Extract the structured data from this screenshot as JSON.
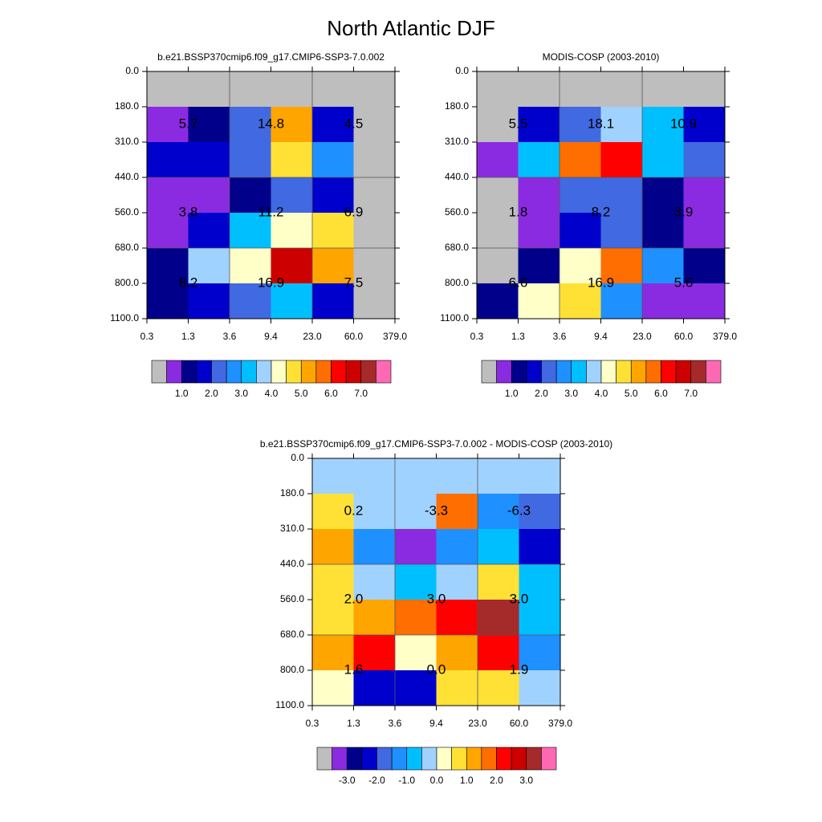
{
  "title": "North Atlantic DJF",
  "chart_data": [
    {
      "type": "heatmap",
      "title": "b.e21.BSSP370cmip6.f09_g17.CMIP6-SSP3-7.0.002",
      "x_edges": [
        "0.3",
        "1.3",
        "3.6",
        "9.4",
        "23.0",
        "60.0",
        "379.0"
      ],
      "y_edges": [
        "0.0",
        "180.0",
        "310.0",
        "440.0",
        "560.0",
        "680.0",
        "800.0",
        "1100.0"
      ],
      "values": [
        [
          null,
          null,
          null,
          null,
          null,
          null
        ],
        [
          0.75,
          1.25,
          2.25,
          5.25,
          1.75,
          null
        ],
        [
          1.75,
          1.75,
          2.25,
          4.75,
          2.75,
          null
        ],
        [
          0.75,
          0.75,
          1.25,
          2.25,
          1.75,
          null
        ],
        [
          0.75,
          1.75,
          3.25,
          4.25,
          4.75,
          null
        ],
        [
          1.25,
          3.75,
          4.25,
          6.75,
          5.25,
          null
        ],
        [
          1.25,
          1.75,
          2.25,
          3.25,
          1.75,
          null
        ]
      ],
      "block_labels": [
        [
          "5.7",
          "14.8",
          "4.5"
        ],
        [
          "3.8",
          "11.2",
          "6.9"
        ],
        [
          "8.2",
          "16.9",
          "7.5"
        ]
      ],
      "colorbar": {
        "lim": [
          0,
          8
        ],
        "colors": [
          "#bebebe",
          "#8a2be2",
          "#00008b",
          "#0000cd",
          "#4169e1",
          "#1e90ff",
          "#00bfff",
          "#a0d2ff",
          "#ffffc8",
          "#ffe135",
          "#ffa500",
          "#ff6e00",
          "#ff0000",
          "#cd0000",
          "#a52a2a",
          "#ff69b4"
        ],
        "ticks": [
          {
            "value": 1,
            "label": "1.0"
          },
          {
            "value": 2,
            "label": "2.0"
          },
          {
            "value": 3,
            "label": "3.0"
          },
          {
            "value": 4,
            "label": "4.0"
          },
          {
            "value": 5,
            "label": "5.0"
          },
          {
            "value": 6,
            "label": "6.0"
          },
          {
            "value": 7,
            "label": "7.0"
          }
        ]
      }
    },
    {
      "type": "heatmap",
      "title": "MODIS-COSP (2003-2010)",
      "x_edges": [
        "0.3",
        "1.3",
        "3.6",
        "9.4",
        "23.0",
        "60.0",
        "379.0"
      ],
      "y_edges": [
        "0.0",
        "180.0",
        "310.0",
        "440.0",
        "560.0",
        "680.0",
        "800.0",
        "1100.0"
      ],
      "values": [
        [
          null,
          null,
          null,
          null,
          null,
          null
        ],
        [
          null,
          1.75,
          2.25,
          3.75,
          3.25,
          1.75
        ],
        [
          0.75,
          3.25,
          5.75,
          6.25,
          3.25,
          2.25
        ],
        [
          null,
          0.75,
          2.25,
          2.25,
          1.25,
          0.75
        ],
        [
          null,
          0.75,
          1.75,
          2.25,
          1.25,
          0.75
        ],
        [
          null,
          1.25,
          4.25,
          5.75,
          2.75,
          1.25
        ],
        [
          1.25,
          4.25,
          4.75,
          2.75,
          0.75,
          0.75
        ]
      ],
      "block_labels": [
        [
          "5.5",
          "18.1",
          "10.9"
        ],
        [
          "1.8",
          "8.2",
          "3.9"
        ],
        [
          "6.6",
          "16.9",
          "5.6"
        ]
      ],
      "colorbar": {
        "lim": [
          0,
          8
        ],
        "colors": [
          "#bebebe",
          "#8a2be2",
          "#00008b",
          "#0000cd",
          "#4169e1",
          "#1e90ff",
          "#00bfff",
          "#a0d2ff",
          "#ffffc8",
          "#ffe135",
          "#ffa500",
          "#ff6e00",
          "#ff0000",
          "#cd0000",
          "#a52a2a",
          "#ff69b4"
        ],
        "ticks": [
          {
            "value": 1,
            "label": "1.0"
          },
          {
            "value": 2,
            "label": "2.0"
          },
          {
            "value": 3,
            "label": "3.0"
          },
          {
            "value": 4,
            "label": "4.0"
          },
          {
            "value": 5,
            "label": "5.0"
          },
          {
            "value": 6,
            "label": "6.0"
          },
          {
            "value": 7,
            "label": "7.0"
          }
        ]
      }
    },
    {
      "type": "heatmap",
      "title": "b.e21.BSSP370cmip6.f09_g17.CMIP6-SSP3-7.0.002 - MODIS-COSP (2003-2010)",
      "x_edges": [
        "0.3",
        "1.3",
        "3.6",
        "9.4",
        "23.0",
        "60.0",
        "379.0"
      ],
      "y_edges": [
        "0.0",
        "180.0",
        "310.0",
        "440.0",
        "560.0",
        "680.0",
        "800.0",
        "1100.0"
      ],
      "values": [
        [
          -0.25,
          -0.25,
          -0.25,
          -0.25,
          -0.25,
          -0.25
        ],
        [
          0.75,
          -0.25,
          -0.25,
          1.75,
          -1.25,
          -1.75
        ],
        [
          1.25,
          -1.25,
          -3.25,
          -1.25,
          -0.75,
          -2.25
        ],
        [
          0.75,
          -0.25,
          -0.75,
          -0.25,
          0.75,
          -0.75
        ],
        [
          0.75,
          1.25,
          1.75,
          2.25,
          3.25,
          -0.75
        ],
        [
          1.25,
          2.25,
          0.25,
          1.25,
          2.25,
          -1.25
        ],
        [
          0.25,
          -2.25,
          -2.25,
          0.75,
          0.75,
          -0.25
        ]
      ],
      "block_labels": [
        [
          "0.2",
          "-3.3",
          "-6.3"
        ],
        [
          "2.0",
          "3.0",
          "3.0"
        ],
        [
          "1.6",
          "0.0",
          "1.9"
        ]
      ],
      "colorbar": {
        "lim": [
          -4,
          4
        ],
        "colors": [
          "#bebebe",
          "#8a2be2",
          "#00008b",
          "#0000cd",
          "#4169e1",
          "#1e90ff",
          "#00bfff",
          "#a0d2ff",
          "#ffffc8",
          "#ffe135",
          "#ffa500",
          "#ff6e00",
          "#ff0000",
          "#cd0000",
          "#a52a2a",
          "#ff69b4"
        ],
        "ticks": [
          {
            "value": -3,
            "label": "-3.0"
          },
          {
            "value": -2,
            "label": "-2.0"
          },
          {
            "value": -1,
            "label": "-1.0"
          },
          {
            "value": 0,
            "label": "0.0"
          },
          {
            "value": 1,
            "label": "1.0"
          },
          {
            "value": 2,
            "label": "2.0"
          },
          {
            "value": 3,
            "label": "3.0"
          }
        ]
      }
    }
  ]
}
